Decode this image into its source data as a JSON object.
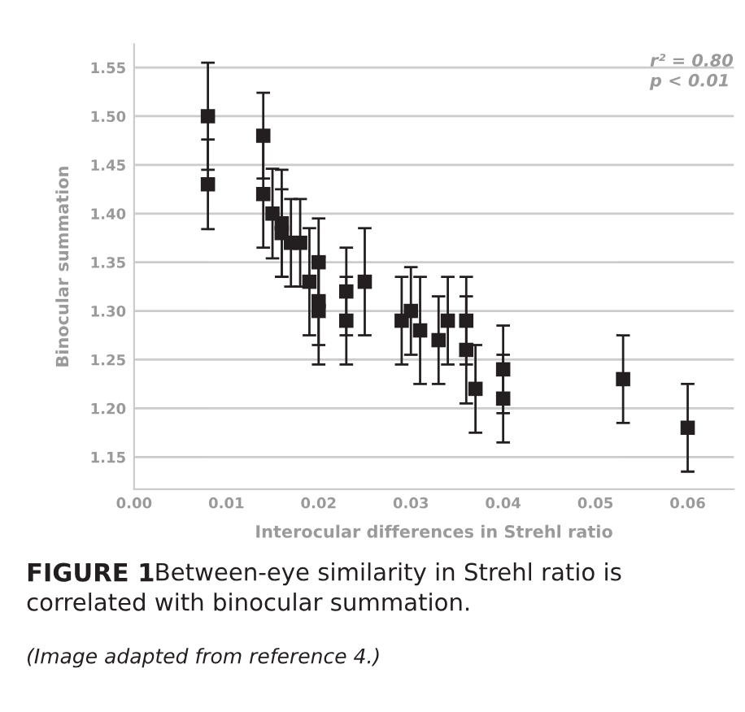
{
  "chart_data": {
    "type": "scatter",
    "xlabel": "Interocular differences in Strehl ratio",
    "ylabel": "Binocular summation",
    "x": [
      0.008,
      0.008,
      0.014,
      0.014,
      0.015,
      0.016,
      0.016,
      0.017,
      0.018,
      0.019,
      0.02,
      0.02,
      0.02,
      0.023,
      0.023,
      0.025,
      0.029,
      0.03,
      0.031,
      0.033,
      0.034,
      0.036,
      0.036,
      0.037,
      0.04,
      0.04,
      0.053,
      0.06
    ],
    "series": [
      {
        "color": "#231f20",
        "values": [
          1.5,
          1.43,
          1.48,
          1.42,
          1.4,
          1.39,
          1.38,
          1.37,
          1.37,
          1.33,
          1.35,
          1.31,
          1.3,
          1.32,
          1.29,
          1.33,
          1.29,
          1.3,
          1.28,
          1.27,
          1.29,
          1.29,
          1.26,
          1.22,
          1.24,
          1.21,
          1.23,
          1.18
        ],
        "errors": [
          0.055,
          0.046,
          0.044,
          0.055,
          0.046,
          0.055,
          0.045,
          0.045,
          0.045,
          0.055,
          0.045,
          0.045,
          0.055,
          0.045,
          0.045,
          0.055,
          0.045,
          0.045,
          0.055,
          0.045,
          0.045,
          0.045,
          0.055,
          0.045,
          0.045,
          0.045,
          0.045,
          0.045
        ]
      }
    ],
    "marker": "square",
    "grid": "y",
    "xlim": [
      0,
      0.065
    ],
    "ylim": [
      1.117,
      1.574
    ],
    "xticks": [
      {
        "value": 0,
        "label": "0.00"
      },
      0.01,
      0.02,
      0.03,
      0.04,
      0.05,
      0.06
    ],
    "yticks": [
      1.15,
      {
        "value": 1.2,
        "label": "1.20"
      },
      1.25,
      {
        "value": 1.3,
        "label": "1.30"
      },
      1.35,
      {
        "value": 1.4,
        "label": "1.40"
      },
      1.45,
      {
        "value": 1.5,
        "label": "1.50"
      },
      1.55
    ],
    "annotations": [
      "r² = 0.80",
      "p < 0.01",
      "FIGURE 1",
      "Between-eye similarity in Strehl ratio is correlated with binocular summation.",
      "(Image adapted from reference 4.)"
    ]
  }
}
